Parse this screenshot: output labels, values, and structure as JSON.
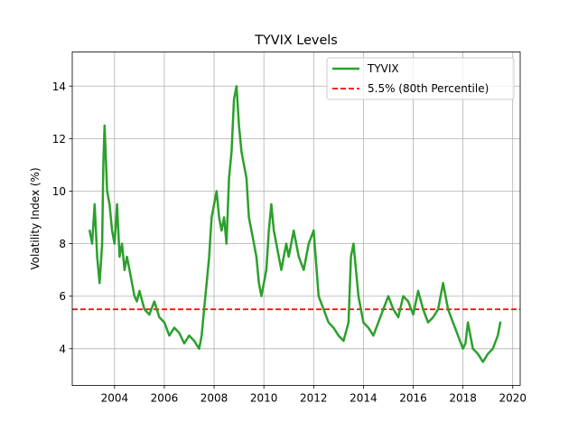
{
  "chart_data": {
    "type": "line",
    "title": "TYVIX Levels",
    "xlabel": "",
    "ylabel": "Volatility Index (%)",
    "xlim": [
      2002.3,
      2020.3
    ],
    "ylim": [
      2.6,
      15.3
    ],
    "x_ticks": [
      2004,
      2006,
      2008,
      2010,
      2012,
      2014,
      2016,
      2018,
      2020
    ],
    "y_ticks": [
      4,
      6,
      8,
      10,
      12,
      14
    ],
    "grid": true,
    "legend_position": "top-right",
    "colors": {
      "series": "#2ca02c",
      "reference": "#ff0000",
      "grid": "#b0b0b0"
    },
    "series": [
      {
        "name": "TYVIX",
        "style": "solid",
        "x": [
          2003.0,
          2003.1,
          2003.2,
          2003.3,
          2003.4,
          2003.5,
          2003.55,
          2003.6,
          2003.7,
          2003.8,
          2003.9,
          2004.0,
          2004.1,
          2004.2,
          2004.3,
          2004.4,
          2004.5,
          2004.6,
          2004.7,
          2004.8,
          2004.9,
          2005.0,
          2005.2,
          2005.4,
          2005.6,
          2005.8,
          2006.0,
          2006.2,
          2006.4,
          2006.6,
          2006.8,
          2007.0,
          2007.2,
          2007.4,
          2007.5,
          2007.6,
          2007.7,
          2007.8,
          2007.9,
          2008.0,
          2008.1,
          2008.2,
          2008.3,
          2008.4,
          2008.5,
          2008.6,
          2008.7,
          2008.8,
          2008.9,
          2009.0,
          2009.1,
          2009.2,
          2009.3,
          2009.4,
          2009.5,
          2009.6,
          2009.7,
          2009.8,
          2009.9,
          2010.0,
          2010.1,
          2010.2,
          2010.3,
          2010.4,
          2010.5,
          2010.6,
          2010.7,
          2010.8,
          2010.9,
          2011.0,
          2011.2,
          2011.4,
          2011.6,
          2011.8,
          2012.0,
          2012.2,
          2012.4,
          2012.6,
          2012.8,
          2013.0,
          2013.2,
          2013.4,
          2013.5,
          2013.6,
          2013.8,
          2014.0,
          2014.2,
          2014.4,
          2014.6,
          2014.8,
          2015.0,
          2015.2,
          2015.4,
          2015.6,
          2015.8,
          2016.0,
          2016.2,
          2016.4,
          2016.6,
          2016.8,
          2017.0,
          2017.2,
          2017.4,
          2017.6,
          2017.8,
          2018.0,
          2018.1,
          2018.2,
          2018.4,
          2018.6,
          2018.8,
          2019.0,
          2019.2,
          2019.4,
          2019.5
        ],
        "y": [
          8.5,
          8.0,
          9.5,
          7.5,
          6.5,
          8.0,
          11.0,
          12.5,
          10.0,
          9.5,
          8.5,
          8.0,
          9.5,
          7.5,
          8.0,
          7.0,
          7.5,
          7.0,
          6.5,
          6.0,
          5.8,
          6.2,
          5.5,
          5.3,
          5.8,
          5.2,
          5.0,
          4.5,
          4.8,
          4.6,
          4.2,
          4.5,
          4.3,
          4.0,
          4.5,
          5.5,
          6.5,
          7.5,
          9.0,
          9.5,
          10.0,
          9.0,
          8.5,
          9.0,
          8.0,
          10.5,
          11.5,
          13.5,
          14.0,
          12.5,
          11.5,
          11.0,
          10.5,
          9.0,
          8.5,
          8.0,
          7.5,
          6.5,
          6.0,
          6.5,
          7.0,
          8.5,
          9.5,
          8.5,
          8.0,
          7.5,
          7.0,
          7.5,
          8.0,
          7.5,
          8.5,
          7.5,
          7.0,
          8.0,
          8.5,
          6.0,
          5.5,
          5.0,
          4.8,
          4.5,
          4.3,
          5.0,
          7.5,
          8.0,
          6.0,
          5.0,
          4.8,
          4.5,
          5.0,
          5.5,
          6.0,
          5.5,
          5.2,
          6.0,
          5.8,
          5.3,
          6.2,
          5.5,
          5.0,
          5.2,
          5.5,
          6.5,
          5.5,
          5.0,
          4.5,
          4.0,
          4.2,
          5.0,
          4.0,
          3.8,
          3.5,
          3.8,
          4.0,
          4.5,
          5.0
        ]
      }
    ],
    "reference_lines": [
      {
        "name": "5.5% (80th Percentile)",
        "y": 5.5,
        "style": "dashed"
      }
    ]
  }
}
